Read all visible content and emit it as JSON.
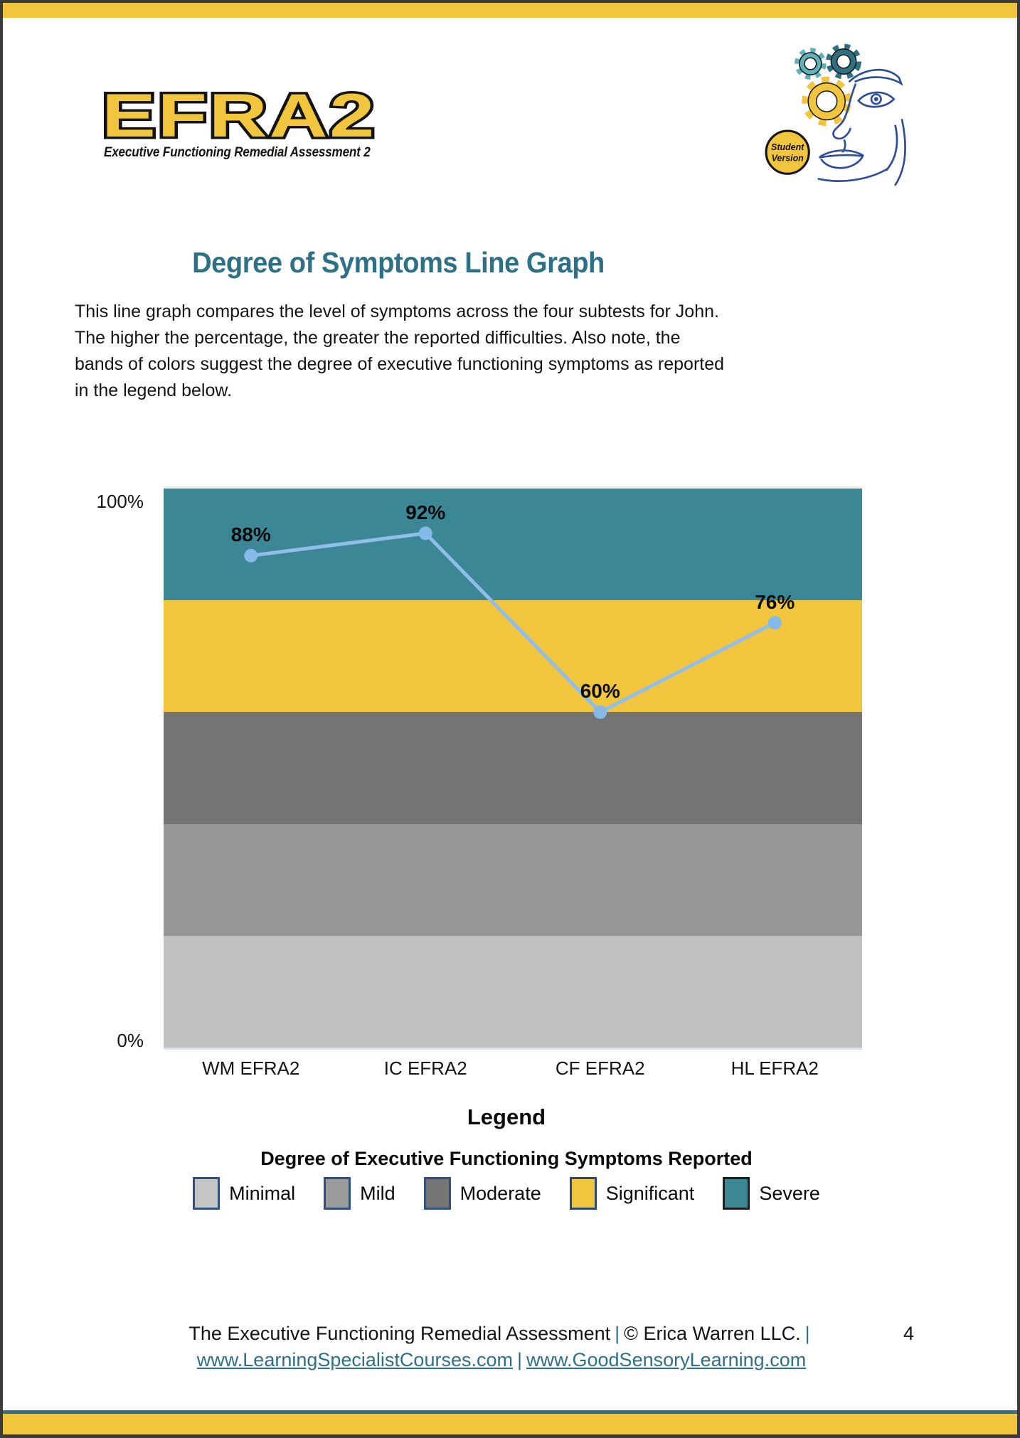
{
  "colors": {
    "accent_teal": "#2E7086",
    "frame_yellow": "#F2C53E",
    "frame_dark": "#3A3A3A",
    "navy_line": "#2F4E96"
  },
  "header": {
    "logo_title": "EFRA2",
    "logo_subtitle": "Executive Functioning Remedial Assessment 2",
    "badge_line1": "Student",
    "badge_line2": "Version"
  },
  "title": "Degree of Symptoms Line Graph",
  "intro": "This line graph compares the level of symptoms across the four subtests for John. The higher the percentage, the greater the reported difficulties. Also note, the bands of colors suggest the degree of executive functioning symptoms as reported in the legend below.",
  "chart_data": {
    "type": "line",
    "categories": [
      "WM EFRA2",
      "IC EFRA2",
      "CF EFRA2",
      "HL EFRA2"
    ],
    "values": [
      88,
      92,
      60,
      76
    ],
    "value_labels": [
      "88%",
      "92%",
      "60%",
      "76%"
    ],
    "y_axis_labels": [
      "100%",
      "0%"
    ],
    "ylim": [
      0,
      100
    ],
    "grid": false,
    "legend_position": "below",
    "line_color": "#8FBEEA",
    "marker_color": "#85B9E8",
    "bands": [
      {
        "label": "Severe",
        "from": 80,
        "to": 100,
        "color": "#3C8795"
      },
      {
        "label": "Significant",
        "from": 60,
        "to": 80,
        "color": "#F2C53E"
      },
      {
        "label": "Moderate",
        "from": 40,
        "to": 60,
        "color": "#747474"
      },
      {
        "label": "Mild",
        "from": 20,
        "to": 40,
        "color": "#979797"
      },
      {
        "label": "Minimal",
        "from": 0,
        "to": 20,
        "color": "#C0C0C0"
      }
    ]
  },
  "legend": {
    "title": "Legend",
    "subtitle": "Degree of Executive Functioning Symptoms Reported",
    "items": [
      {
        "label": "Minimal",
        "color": "#C5C5C5",
        "border": "#31507F"
      },
      {
        "label": "Mild",
        "color": "#9A9A9A",
        "border": "#31507F"
      },
      {
        "label": "Moderate",
        "color": "#747474",
        "border": "#31507F"
      },
      {
        "label": "Significant",
        "color": "#F2C53E",
        "border": "#2C4A77"
      },
      {
        "label": "Severe",
        "color": "#3C8795",
        "border": "#1E1E1E"
      }
    ]
  },
  "footer": {
    "title": "The Executive Functioning Remedial Assessment",
    "sep": "|",
    "copyright": "© Erica Warren LLC.",
    "page_number": "4",
    "link1": "www.LearningSpecialistCourses.com",
    "link2": "www.GoodSensoryLearning.com"
  }
}
